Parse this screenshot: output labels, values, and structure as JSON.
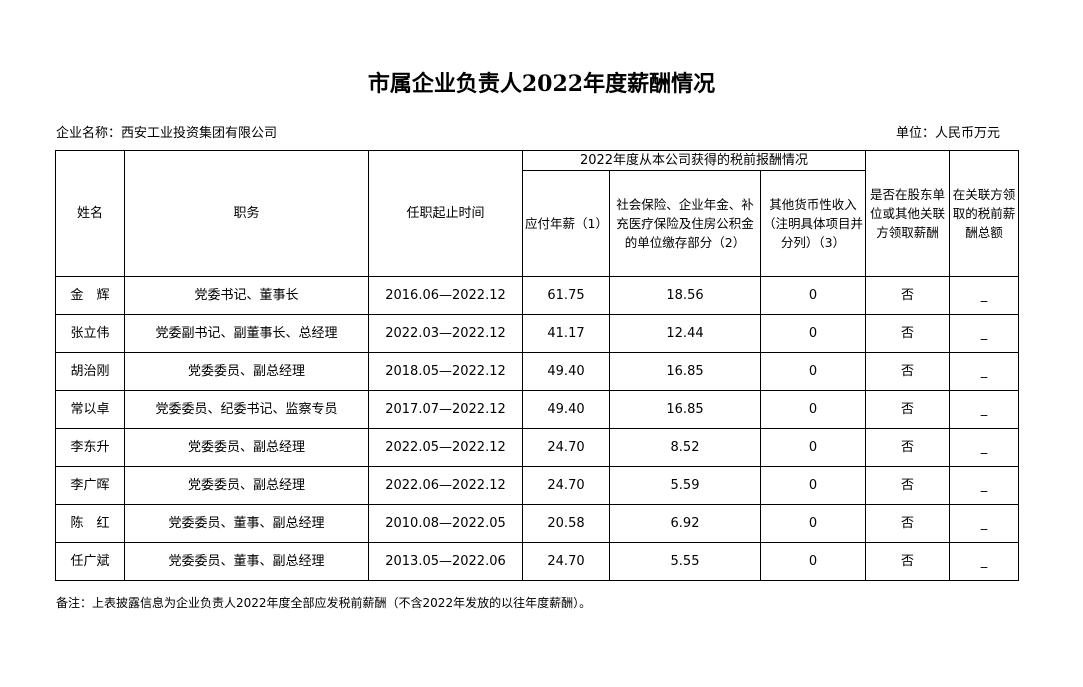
{
  "title": "市属企业负责人2022年度薪酬情况",
  "company_label": "企业名称：西安工业投资集团有限公司",
  "unit_label": "单位：人民币万元",
  "headers": {
    "name": "姓名",
    "position": "职务",
    "tenure": "任职起止时间",
    "group": "2022年度从本公司获得的税前报酬情况",
    "salary": "应付年薪（1）",
    "insurance": "社会保险、企业年金、补充医疗保险及住房公积金的单位缴存部分（2）",
    "other": "其他货币性收入（注明具体项目并分列）（3）",
    "affiliate": "是否在股东单位或其他关联方领取薪酬",
    "affiliate_total": "在关联方领取的税前薪酬总额"
  },
  "rows": [
    {
      "name": "金　辉",
      "position": "党委书记、董事长",
      "tenure": "2016.06—2022.12",
      "salary": "61.75",
      "insurance": "18.56",
      "other": "0",
      "affiliate": "否",
      "affiliate_total": "_"
    },
    {
      "name": "张立伟",
      "position": "党委副书记、副董事长、总经理",
      "tenure": "2022.03—2022.12",
      "salary": "41.17",
      "insurance": "12.44",
      "other": "0",
      "affiliate": "否",
      "affiliate_total": "_"
    },
    {
      "name": "胡治刚",
      "position": "党委委员、副总经理",
      "tenure": "2018.05—2022.12",
      "salary": "49.40",
      "insurance": "16.85",
      "other": "0",
      "affiliate": "否",
      "affiliate_total": "_"
    },
    {
      "name": "常以卓",
      "position": "党委委员、纪委书记、监察专员",
      "tenure": "2017.07—2022.12",
      "salary": "49.40",
      "insurance": "16.85",
      "other": "0",
      "affiliate": "否",
      "affiliate_total": "_"
    },
    {
      "name": "李东升",
      "position": "党委委员、副总经理",
      "tenure": "2022.05—2022.12",
      "salary": "24.70",
      "insurance": "8.52",
      "other": "0",
      "affiliate": "否",
      "affiliate_total": "_"
    },
    {
      "name": "李广晖",
      "position": "党委委员、副总经理",
      "tenure": "2022.06—2022.12",
      "salary": "24.70",
      "insurance": "5.59",
      "other": "0",
      "affiliate": "否",
      "affiliate_total": "_"
    },
    {
      "name": "陈　红",
      "position": "党委委员、董事、副总经理",
      "tenure": "2010.08—2022.05",
      "salary": "20.58",
      "insurance": "6.92",
      "other": "0",
      "affiliate": "否",
      "affiliate_total": "_"
    },
    {
      "name": "任广斌",
      "position": "党委委员、董事、副总经理",
      "tenure": "2013.05—2022.06",
      "salary": "24.70",
      "insurance": "5.55",
      "other": "0",
      "affiliate": "否",
      "affiliate_total": "_"
    }
  ],
  "note": "备注：上表披露信息为企业负责人2022年度全部应发税前薪酬（不含2022年发放的以往年度薪酬）。"
}
